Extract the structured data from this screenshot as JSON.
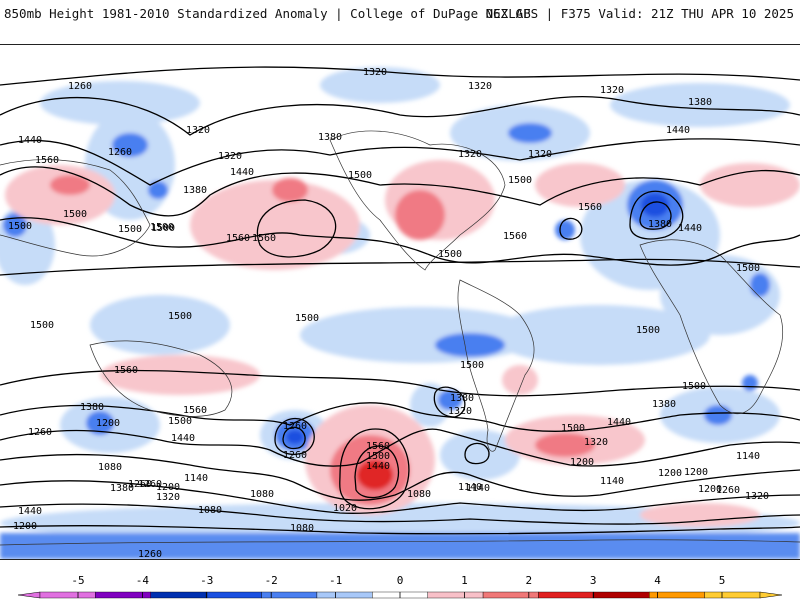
{
  "header": {
    "title": "850mb Height 1981-2010 Standardized Anomaly | College of DuPage NEXLAB",
    "run_info": "06Z GFS | F375 Valid: 21Z THU APR 10 2025"
  },
  "map": {
    "projection": "global-equirectangular",
    "variable": "850mb geopotential height",
    "contour_labels": [
      "1320",
      "1320",
      "1320",
      "1260",
      "1260",
      "1260",
      "1320",
      "1320",
      "1380",
      "1320",
      "1440",
      "1440",
      "1380",
      "1320",
      "1440",
      "1560",
      "1500",
      "1500",
      "1500",
      "1380",
      "1560",
      "1500",
      "1500",
      "1500",
      "1560",
      "1560",
      "1560",
      "1500",
      "1380",
      "1500",
      "1440",
      "1500",
      "1500",
      "1500",
      "1500",
      "1500",
      "1500",
      "1500",
      "1560",
      "1560",
      "1500",
      "1380",
      "1260",
      "1200",
      "1260",
      "1440",
      "1380",
      "1320",
      "1260",
      "1560",
      "1500",
      "1440",
      "1380",
      "1320",
      "1500",
      "1440",
      "1200",
      "1080",
      "1140",
      "1080",
      "1140",
      "1140",
      "1200",
      "1260",
      "1380",
      "1200",
      "1260",
      "1320",
      "1140",
      "1200",
      "1080",
      "1020",
      "1080",
      "1140",
      "1200",
      "1260",
      "1320",
      "1440",
      "1200",
      "1080"
    ]
  },
  "legend": {
    "type": "standardized-anomaly",
    "ticks": [
      "-5",
      "-4",
      "-3",
      "-2",
      "-1",
      "0",
      "1",
      "2",
      "3",
      "4",
      "5"
    ],
    "colors": [
      "#e070e0",
      "#8000c0",
      "#0030b0",
      "#1a50e0",
      "#4a7ff0",
      "#a8c8f8",
      "#ffffff",
      "#f8c0c8",
      "#f07878",
      "#e02020",
      "#b00000",
      "#ff9900",
      "#ffcc33"
    ]
  }
}
